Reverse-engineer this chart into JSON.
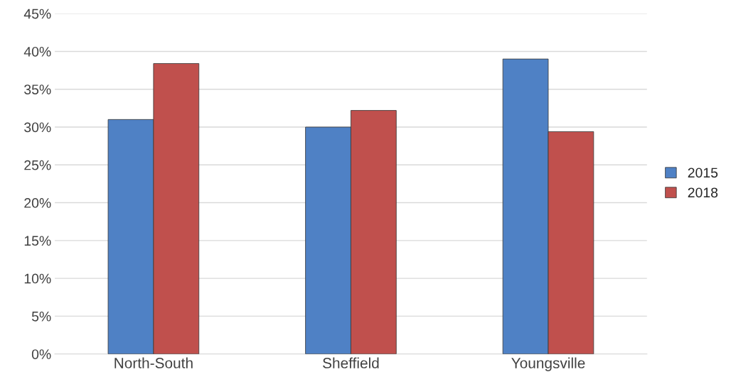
{
  "chart_data": {
    "type": "bar",
    "categories": [
      "North-South",
      "Sheffield",
      "Youngsville"
    ],
    "series": [
      {
        "name": "2015",
        "color": "#4f81c5",
        "values": [
          31.0,
          30.0,
          39.0
        ]
      },
      {
        "name": "2018",
        "color": "#c0504d",
        "values": [
          38.4,
          32.2,
          29.4
        ]
      }
    ],
    "ylim": [
      0,
      45
    ],
    "yticks": [
      {
        "value": 0,
        "label": "0%"
      },
      {
        "value": 5,
        "label": "5%"
      },
      {
        "value": 10,
        "label": "10%"
      },
      {
        "value": 15,
        "label": "15%"
      },
      {
        "value": 20,
        "label": "20%"
      },
      {
        "value": 25,
        "label": "25%"
      },
      {
        "value": 30,
        "label": "30%"
      },
      {
        "value": 35,
        "label": "35%"
      },
      {
        "value": 40,
        "label": "40%"
      },
      {
        "value": 45,
        "label": "45%"
      }
    ],
    "grid": "y",
    "legend": "right"
  }
}
